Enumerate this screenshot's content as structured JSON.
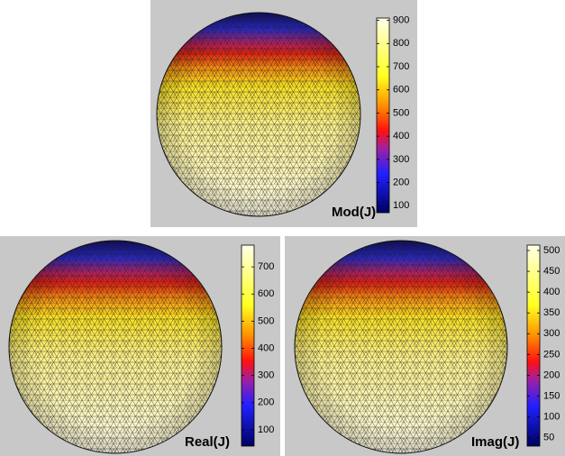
{
  "chart_data": [
    {
      "type": "surface",
      "title": "Mod(J)",
      "ylim": [
        70,
        910
      ],
      "yticks": [
        100,
        200,
        300,
        400,
        500,
        600,
        700,
        800,
        900
      ]
    },
    {
      "type": "surface",
      "title": "Real(J)",
      "ylim": [
        40,
        780
      ],
      "yticks": [
        100,
        200,
        300,
        400,
        500,
        600,
        700
      ]
    },
    {
      "type": "surface",
      "title": "Imag(J)",
      "ylim": [
        30,
        513
      ],
      "yticks": [
        50,
        100,
        150,
        200,
        250,
        300,
        350,
        400,
        450,
        500
      ]
    }
  ]
}
